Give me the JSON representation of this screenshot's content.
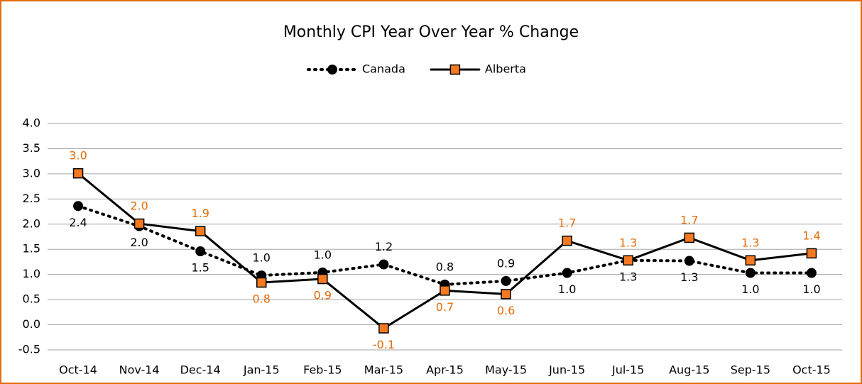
{
  "chart_data": {
    "type": "line",
    "title": "Monthly CPI Year Over Year % Change",
    "categories": [
      "Oct-14",
      "Nov-14",
      "Dec-14",
      "Jan-15",
      "Feb-15",
      "Mar-15",
      "Apr-15",
      "May-15",
      "Jun-15",
      "Jul-15",
      "Aug-15",
      "Sep-15",
      "Oct-15"
    ],
    "series": [
      {
        "name": "Canada",
        "color": "#000000",
        "values": [
          2.36,
          1.96,
          1.46,
          0.98,
          1.04,
          1.2,
          0.8,
          0.87,
          1.03,
          1.28,
          1.27,
          1.03,
          1.03
        ],
        "value_labels": [
          "2.4",
          "2.0",
          "1.5",
          "1.0",
          "1.0",
          "1.2",
          "0.8",
          "0.9",
          "1.0",
          "1.3",
          "1.3",
          "1.0",
          "1.0"
        ]
      },
      {
        "name": "Alberta",
        "color": "#f47920",
        "values": [
          3.01,
          2.01,
          1.86,
          0.84,
          0.91,
          -0.07,
          0.68,
          0.61,
          1.67,
          1.28,
          1.73,
          1.28,
          1.42
        ],
        "value_labels": [
          "3.0",
          "2.0",
          "1.9",
          "0.8",
          "0.9",
          "-0.1",
          "0.7",
          "0.6",
          "1.7",
          "1.3",
          "1.7",
          "1.3",
          "1.4"
        ]
      }
    ],
    "ylim": [
      -0.5,
      4.0
    ],
    "yticks": [
      {
        "value": -0.5,
        "label": "-0.5"
      },
      {
        "value": 0,
        "label": "0.0"
      },
      {
        "value": 0.5,
        "label": "0.5"
      },
      {
        "value": 1,
        "label": "1.0"
      },
      {
        "value": 1.5,
        "label": "1.5"
      },
      {
        "value": 2,
        "label": "2.0"
      },
      {
        "value": 2.5,
        "label": "2.5"
      },
      {
        "value": 3,
        "label": "3.0"
      },
      {
        "value": 3.5,
        "label": "3.5"
      },
      {
        "value": 4,
        "label": "4.0"
      }
    ],
    "grid": true,
    "legend": "top"
  }
}
